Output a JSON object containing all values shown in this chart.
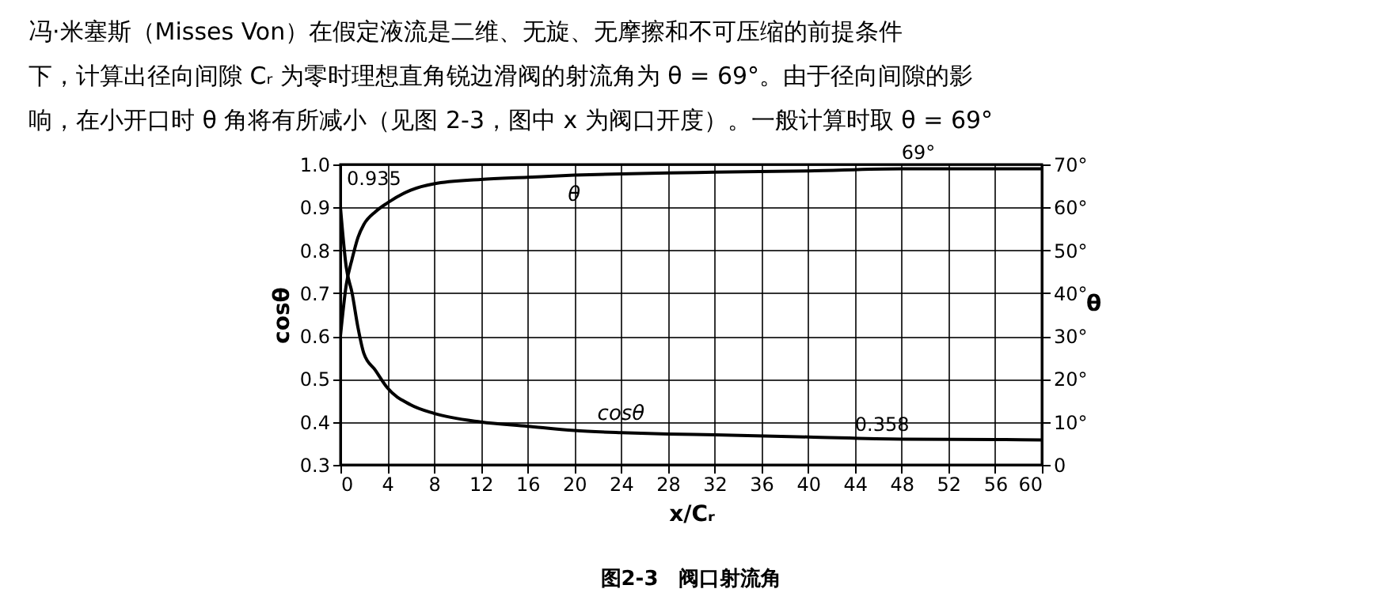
{
  "chart_data": {
    "type": "line",
    "xlabel": "x/Cᵣ",
    "ylabel": "cosθ",
    "y2label": "θ",
    "x": [
      0,
      0.5,
      1,
      1.5,
      2,
      3,
      4,
      6,
      8,
      12,
      16,
      20,
      24,
      28,
      32,
      40,
      48,
      56,
      60
    ],
    "series": [
      {
        "name": "cosθ",
        "color": "#000000",
        "values": [
          0.9,
          0.76,
          0.7,
          0.62,
          0.56,
          0.52,
          0.48,
          0.44,
          0.42,
          0.4,
          0.39,
          0.38,
          0.375,
          0.372,
          0.37,
          0.365,
          0.36,
          0.359,
          0.358
        ]
      },
      {
        "name": "θ",
        "color": "#000000",
        "axis": "y2",
        "values": [
          30,
          42,
          48,
          53,
          56,
          59,
          61,
          64,
          65.5,
          66.5,
          67,
          67.5,
          67.8,
          68,
          68.2,
          68.5,
          69,
          69,
          69
        ]
      }
    ],
    "xlim": [
      0,
      60
    ],
    "xticks": [
      0,
      4,
      8,
      12,
      16,
      20,
      24,
      28,
      32,
      36,
      40,
      44,
      48,
      52,
      56,
      60
    ],
    "ylim": [
      0.3,
      1.0
    ],
    "yticks": [
      0.3,
      0.4,
      0.5,
      0.6,
      0.7,
      0.8,
      0.9,
      {
        "value": 1,
        "label": "1.0"
      }
    ],
    "y2lim": [
      0,
      70
    ],
    "y2ticks": [
      0,
      {
        "value": 10,
        "label": "10°"
      },
      {
        "value": 20,
        "label": "20°"
      },
      {
        "value": 30,
        "label": "30°"
      },
      {
        "value": 40,
        "label": "40°"
      },
      {
        "value": 50,
        "label": "50°"
      },
      {
        "value": 60,
        "label": "60°"
      },
      {
        "value": 70,
        "label": "70°"
      }
    ],
    "grid": true,
    "legend": false,
    "marker": "none",
    "line_style": "solid",
    "annotations": [
      "冯·米塞斯（Misses Von）在假定液流是二维、无旋、无摩擦和不可压缩的前提条件",
      "下，计算出径向间隙 Cᵣ 为零时理想直角锐边滑阀的射流角为 θ = 69°。由于径向间隙的影",
      "响，在小开口时 θ 角将有所减小（见图 2-3，图中 x 为阀口开度）。一般计算时取 θ = 69°",
      {
        "text": "69°",
        "x": 48,
        "y": 0.99
      },
      {
        "text": "0.358",
        "x": 44,
        "y": 0.358
      },
      "0.935",
      "图2-3　阀口射流角"
    ]
  }
}
